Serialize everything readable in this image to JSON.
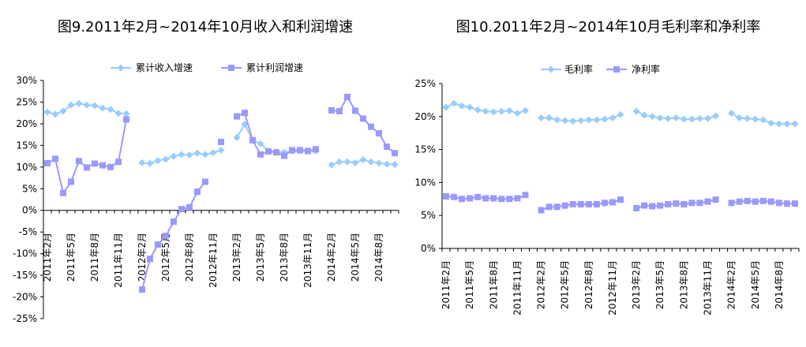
{
  "colors": {
    "revenue": "#99ccff",
    "profit": "#9999ff",
    "gross": "#99ccff",
    "net": "#9999ff"
  },
  "chart_data": [
    {
      "type": "line",
      "title": "图9.2011年2月~2014年10月收入和利润增速",
      "x_tick_labels": [
        "2011年2月",
        "2011年5月",
        "2011年8月",
        "2011年11月",
        "2012年2月",
        "2012年5月",
        "2012年8月",
        "2012年11月",
        "2013年2月",
        "2013年5月",
        "2013年8月",
        "2013年11月",
        "2014年2月",
        "2014年5月",
        "2014年8月"
      ],
      "y_tick_labels": [
        "30%",
        "25%",
        "20%",
        "15%",
        "10%",
        "5%",
        "0%",
        "-5%",
        "-10%",
        "-15%",
        "-20%",
        "-25%"
      ],
      "ylim": [
        -25,
        30
      ],
      "legend_position": "top",
      "series": [
        {
          "name": "累计收入增速",
          "marker": "diamond",
          "values": [
            22.7,
            22.2,
            22.9,
            24.3,
            24.7,
            24.3,
            24.2,
            23.6,
            23.3,
            22.4,
            22.3,
            null,
            11.0,
            10.8,
            11.5,
            11.8,
            12.5,
            12.9,
            12.8,
            13.2,
            12.9,
            13.3,
            13.9,
            null,
            16.8,
            19.9,
            16.2,
            15.4,
            13.7,
            13.5,
            13.4,
            13.6,
            13.7,
            13.7,
            13.7,
            null,
            10.5,
            11.2,
            11.2,
            11.0,
            11.7,
            11.2,
            10.9,
            10.7,
            10.6
          ]
        },
        {
          "name": "累计利润增速",
          "marker": "square",
          "values": [
            10.9,
            11.9,
            4.0,
            6.6,
            11.4,
            9.9,
            10.8,
            10.4,
            10.0,
            11.2,
            21.0,
            null,
            -18.3,
            -11.2,
            -7.9,
            -5.9,
            -2.6,
            0.3,
            0.7,
            4.3,
            6.6,
            null,
            15.8,
            null,
            21.7,
            22.5,
            16.2,
            12.9,
            13.6,
            13.4,
            12.6,
            13.9,
            13.9,
            13.7,
            14.1,
            null,
            23.1,
            22.9,
            26.2,
            23.0,
            21.2,
            19.3,
            17.8,
            14.7,
            13.2
          ]
        }
      ]
    },
    {
      "type": "line",
      "title": "图10.2011年2月~2014年10月毛利率和净利率",
      "x_tick_labels": [
        "2011年2月",
        "2011年5月",
        "2011年8月",
        "2011年11月",
        "2012年2月",
        "2012年5月",
        "2012年8月",
        "2012年11月",
        "2013年2月",
        "2013年5月",
        "2013年8月",
        "2013年11月",
        "2014年2月",
        "2014年5月",
        "2014年8月"
      ],
      "y_tick_labels": [
        "25%",
        "20%",
        "15%",
        "10%",
        "5%",
        "0%"
      ],
      "ylim": [
        0,
        25
      ],
      "legend_position": "top",
      "series": [
        {
          "name": "毛利率",
          "marker": "diamond",
          "values": [
            21.4,
            22.0,
            21.6,
            21.4,
            21.0,
            20.8,
            20.7,
            20.8,
            20.9,
            20.5,
            20.9,
            null,
            19.8,
            19.8,
            19.5,
            19.4,
            19.3,
            19.4,
            19.5,
            19.5,
            19.6,
            19.8,
            20.3,
            null,
            20.8,
            20.2,
            20.0,
            19.8,
            19.7,
            19.8,
            19.6,
            19.6,
            19.7,
            19.7,
            20.1,
            null,
            20.5,
            19.8,
            19.7,
            19.6,
            19.5,
            19.0,
            18.9,
            18.9,
            18.9
          ]
        },
        {
          "name": "净利率",
          "marker": "square",
          "values": [
            7.9,
            7.8,
            7.5,
            7.6,
            7.8,
            7.6,
            7.6,
            7.5,
            7.5,
            7.6,
            8.1,
            null,
            5.8,
            6.3,
            6.3,
            6.5,
            6.7,
            6.7,
            6.7,
            6.7,
            6.9,
            7.0,
            7.4,
            null,
            6.1,
            6.5,
            6.4,
            6.5,
            6.7,
            6.8,
            6.7,
            6.9,
            6.9,
            7.1,
            7.4,
            null,
            6.9,
            7.1,
            7.2,
            7.1,
            7.2,
            7.1,
            6.9,
            6.8,
            6.8
          ]
        }
      ]
    }
  ]
}
